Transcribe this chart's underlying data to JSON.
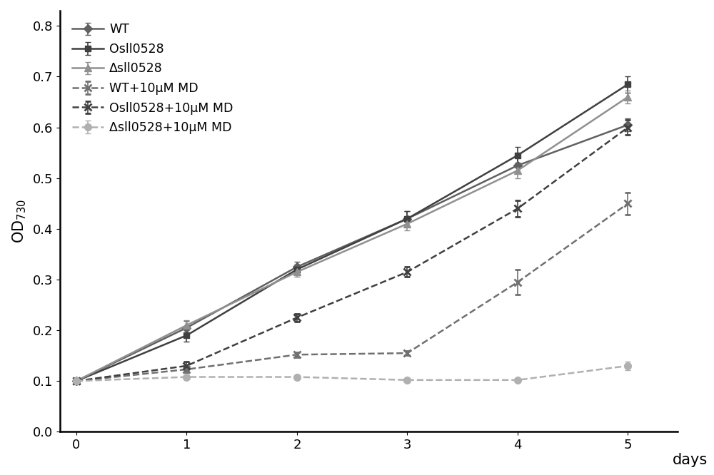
{
  "x": [
    0,
    1,
    2,
    3,
    4,
    5
  ],
  "series": [
    {
      "label": "WT",
      "y": [
        0.1,
        0.205,
        0.325,
        0.42,
        0.525,
        0.605
      ],
      "yerr": [
        0.003,
        0.013,
        0.01,
        0.015,
        0.016,
        0.013
      ],
      "color": "#606060",
      "linestyle": "solid",
      "marker": "D",
      "markersize": 6,
      "linewidth": 1.8,
      "dashes": []
    },
    {
      "label": "Osll0528",
      "y": [
        0.1,
        0.19,
        0.32,
        0.42,
        0.545,
        0.685
      ],
      "yerr": [
        0.003,
        0.013,
        0.01,
        0.015,
        0.016,
        0.016
      ],
      "color": "#404040",
      "linestyle": "solid",
      "marker": "s",
      "markersize": 6,
      "linewidth": 1.8,
      "dashes": []
    },
    {
      "label": "Δsll0528",
      "y": [
        0.1,
        0.21,
        0.315,
        0.41,
        0.515,
        0.66
      ],
      "yerr": [
        0.003,
        0.01,
        0.01,
        0.013,
        0.016,
        0.013
      ],
      "color": "#909090",
      "linestyle": "solid",
      "marker": "^",
      "markersize": 7,
      "linewidth": 1.8,
      "dashes": []
    },
    {
      "label": "WT+10μM MD",
      "y": [
        0.1,
        0.123,
        0.152,
        0.155,
        0.295,
        0.45
      ],
      "yerr": [
        0.003,
        0.006,
        0.005,
        0.004,
        0.025,
        0.022
      ],
      "color": "#707070",
      "linestyle": "dashed",
      "marker": "x",
      "markersize": 7,
      "linewidth": 1.8,
      "dashes": [
        6,
        3
      ]
    },
    {
      "label": "Osll0528+10μM MD",
      "y": [
        0.1,
        0.13,
        0.225,
        0.315,
        0.44,
        0.6
      ],
      "yerr": [
        0.003,
        0.008,
        0.008,
        0.01,
        0.016,
        0.015
      ],
      "color": "#404040",
      "linestyle": "dashed",
      "marker": "x",
      "markersize": 7,
      "linewidth": 1.8,
      "dashes": [
        6,
        3
      ]
    },
    {
      "label": "Δsll0528+10μM MD",
      "y": [
        0.1,
        0.108,
        0.108,
        0.102,
        0.102,
        0.13
      ],
      "yerr": [
        0.003,
        0.004,
        0.003,
        0.003,
        0.003,
        0.008
      ],
      "color": "#b0b0b0",
      "linestyle": "dashed",
      "marker": "o",
      "markersize": 7,
      "linewidth": 1.8,
      "dashes": [
        6,
        3
      ]
    }
  ],
  "xlabel": "days",
  "ylabel": "OD$_{730}$",
  "xlim": [
    -0.15,
    5.45
  ],
  "ylim": [
    0,
    0.83
  ],
  "yticks": [
    0,
    0.1,
    0.2,
    0.3,
    0.4,
    0.5,
    0.6,
    0.7,
    0.8
  ],
  "xticks": [
    0,
    1,
    2,
    3,
    4,
    5
  ],
  "figsize": [
    10.0,
    6.66
  ],
  "dpi": 100,
  "background_color": "#ffffff",
  "plot_bg_color": "#ffffff",
  "legend_fontsize": 12.5,
  "axis_label_fontsize": 15,
  "tick_fontsize": 13
}
